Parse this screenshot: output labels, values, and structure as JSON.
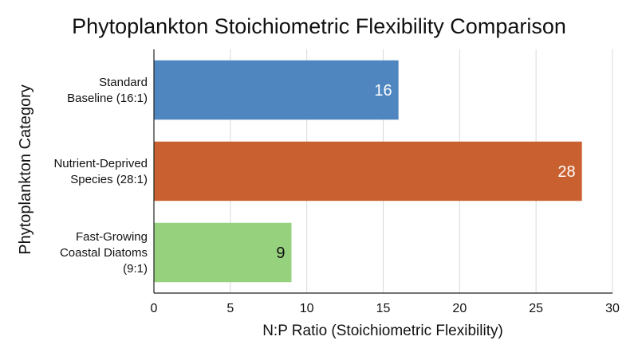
{
  "chart_data": {
    "type": "bar",
    "orientation": "horizontal",
    "title": "Phytoplankton Stoichiometric Flexibility Comparison",
    "xlabel": "N:P Ratio (Stoichiometric Flexibility)",
    "ylabel": "Phytoplankton Category",
    "xlim": [
      0,
      30
    ],
    "xticks": [
      "0",
      "5",
      "10",
      "15",
      "20",
      "25",
      "30"
    ],
    "grid": true,
    "categories": [
      [
        "Standard",
        "Baseline (16:1)"
      ],
      [
        "Nutrient-Deprived",
        "Species (28:1)"
      ],
      [
        "Fast-Growing",
        "Coastal Diatoms",
        "(9:1)"
      ]
    ],
    "values": [
      16,
      28,
      9
    ],
    "data_labels": [
      "16",
      "28",
      "9"
    ],
    "colors": [
      "#4f86c0",
      "#c9602f",
      "#96d17d"
    ],
    "label_colors": [
      "#ffffff",
      "#ffffff",
      "#111111"
    ]
  }
}
